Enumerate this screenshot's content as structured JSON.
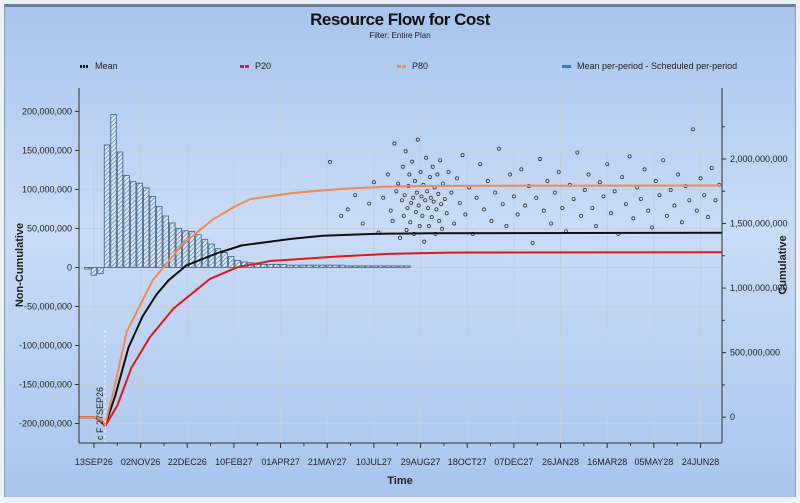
{
  "chart_data": {
    "type": "bar+line+scatter",
    "title": "Resource Flow for Cost",
    "subtitle": "Filter: Entire Plan",
    "xlabel": "Time",
    "ylabel_left": "Non-Cumulative",
    "ylabel_right": "Cumulative",
    "x_units": "days since 13SEP26",
    "xlim_days": [
      -16,
      673
    ],
    "x_tick_labels": [
      "13SEP26",
      "02NOV26",
      "22DEC26",
      "10FEB27",
      "01APR27",
      "21MAY27",
      "10JUL27",
      "29AUG27",
      "18OCT27",
      "07DEC27",
      "26JAN28",
      "16MAR28",
      "05MAY28",
      "24JUN28"
    ],
    "x_tick_step_days": 50,
    "ylim_left": [
      -225000000,
      230000000
    ],
    "y_left_ticks": [
      200000000,
      150000000,
      100000000,
      50000000,
      0,
      -50000000,
      -100000000,
      -150000000,
      -200000000
    ],
    "y_left_tick_labels": [
      "200,000,000",
      "150,000,000",
      "100,000,000",
      "50,000,000",
      "0",
      "-50,000,000",
      "-100,000,000",
      "-150,000,000",
      "-200,000,000"
    ],
    "ylim_right": [
      -200000000,
      2550000000
    ],
    "y_right_ticks": [
      2000000000,
      1500000000,
      1000000000,
      500000000,
      0
    ],
    "y_right_tick_labels": [
      "2,000,000,000",
      "1,500,000,000",
      "1,000,000,000",
      "500,000,000",
      "0"
    ],
    "grid": true,
    "legend_position": "top",
    "legend": [
      {
        "label": "Mean",
        "color": "#111111"
      },
      {
        "label": "P20",
        "color": "#e01818"
      },
      {
        "label": "P80",
        "color": "#f08a50"
      },
      {
        "label": "Mean per-period - Scheduled per-period",
        "color": "#1e7fe0"
      }
    ],
    "data_date_marker": {
      "day": 12,
      "label": "c F  27SEP26"
    },
    "bars": {
      "name": "Mean per-period - Scheduled per-period",
      "axis": "left",
      "start_day": -7,
      "step_days": 7,
      "values_millions": [
        -1,
        -10,
        -8,
        157,
        196,
        148,
        118,
        110,
        108,
        102,
        91,
        78,
        66,
        57,
        50,
        47,
        46,
        42,
        36,
        30,
        24,
        19,
        14,
        9,
        7,
        6,
        4,
        4,
        4,
        4,
        4,
        3,
        3,
        3,
        3,
        3,
        3,
        3,
        3,
        3,
        2,
        2,
        2,
        2,
        2,
        2,
        2,
        2,
        2,
        2
      ]
    },
    "series": [
      {
        "name": "Mean",
        "axis": "right",
        "color": "#111111",
        "points_days_millions": [
          [
            -16,
            0
          ],
          [
            0,
            0
          ],
          [
            7,
            -20
          ],
          [
            12,
            -65
          ],
          [
            23,
            170
          ],
          [
            37,
            540
          ],
          [
            52,
            780
          ],
          [
            67,
            950
          ],
          [
            80,
            1060
          ],
          [
            99,
            1175
          ],
          [
            132,
            1270
          ],
          [
            158,
            1330
          ],
          [
            210,
            1380
          ],
          [
            245,
            1405
          ],
          [
            300,
            1420
          ],
          [
            360,
            1425
          ],
          [
            673,
            1428
          ]
        ]
      },
      {
        "name": "P20",
        "axis": "right",
        "color": "#e01818",
        "points_days_millions": [
          [
            -16,
            0
          ],
          [
            0,
            0
          ],
          [
            7,
            -25
          ],
          [
            12,
            -70
          ],
          [
            25,
            90
          ],
          [
            40,
            380
          ],
          [
            60,
            620
          ],
          [
            85,
            840
          ],
          [
            124,
            1070
          ],
          [
            153,
            1160
          ],
          [
            189,
            1210
          ],
          [
            261,
            1245
          ],
          [
            315,
            1265
          ],
          [
            380,
            1275
          ],
          [
            673,
            1278
          ]
        ]
      },
      {
        "name": "P80",
        "axis": "right",
        "color": "#f08a50",
        "points_days_millions": [
          [
            -16,
            0
          ],
          [
            0,
            0
          ],
          [
            7,
            -15
          ],
          [
            12,
            -55
          ],
          [
            22,
            230
          ],
          [
            35,
            660
          ],
          [
            63,
            1060
          ],
          [
            95,
            1340
          ],
          [
            127,
            1530
          ],
          [
            153,
            1640
          ],
          [
            168,
            1690
          ],
          [
            217,
            1740
          ],
          [
            268,
            1770
          ],
          [
            310,
            1785
          ],
          [
            360,
            1792
          ],
          [
            673,
            1795
          ]
        ]
      }
    ],
    "scatter": {
      "name": "Sampled finish cost",
      "axis": "right",
      "points_days_millions": [
        [
          253,
          1978
        ],
        [
          265,
          1560
        ],
        [
          272,
          1610
        ],
        [
          280,
          1720
        ],
        [
          288,
          1500
        ],
        [
          295,
          1655
        ],
        [
          300,
          1820
        ],
        [
          305,
          1430
        ],
        [
          310,
          1700
        ],
        [
          315,
          1880
        ],
        [
          318,
          1600
        ],
        [
          320,
          1520
        ],
        [
          322,
          2120
        ],
        [
          324,
          1750
        ],
        [
          326,
          1810
        ],
        [
          328,
          1390
        ],
        [
          330,
          1680
        ],
        [
          331,
          1940
        ],
        [
          332,
          1560
        ],
        [
          333,
          1720
        ],
        [
          334,
          2060
        ],
        [
          335,
          1450
        ],
        [
          336,
          1620
        ],
        [
          337,
          1790
        ],
        [
          338,
          1880
        ],
        [
          339,
          1510
        ],
        [
          340,
          1660
        ],
        [
          341,
          1980
        ],
        [
          342,
          1700
        ],
        [
          343,
          1420
        ],
        [
          344,
          1830
        ],
        [
          345,
          1590
        ],
        [
          346,
          1740
        ],
        [
          347,
          2150
        ],
        [
          348,
          1640
        ],
        [
          349,
          1480
        ],
        [
          350,
          1900
        ],
        [
          351,
          1710
        ],
        [
          352,
          1560
        ],
        [
          353,
          1800
        ],
        [
          354,
          1360
        ],
        [
          355,
          1680
        ],
        [
          356,
          2010
        ],
        [
          357,
          1750
        ],
        [
          358,
          1620
        ],
        [
          359,
          1480
        ],
        [
          360,
          1860
        ],
        [
          361,
          1700
        ],
        [
          362,
          1550
        ],
        [
          363,
          1940
        ],
        [
          364,
          1670
        ],
        [
          365,
          1780
        ],
        [
          366,
          1420
        ],
        [
          367,
          1610
        ],
        [
          368,
          1880
        ],
        [
          369,
          1730
        ],
        [
          370,
          1520
        ],
        [
          371,
          1990
        ],
        [
          372,
          1650
        ],
        [
          373,
          1460
        ],
        [
          374,
          1810
        ],
        [
          376,
          1690
        ],
        [
          378,
          1580
        ],
        [
          380,
          1900
        ],
        [
          383,
          1740
        ],
        [
          386,
          1500
        ],
        [
          389,
          1850
        ],
        [
          392,
          1660
        ],
        [
          395,
          2030
        ],
        [
          398,
          1570
        ],
        [
          402,
          1780
        ],
        [
          406,
          1420
        ],
        [
          410,
          1700
        ],
        [
          414,
          1960
        ],
        [
          418,
          1610
        ],
        [
          422,
          1830
        ],
        [
          426,
          1520
        ],
        [
          430,
          1740
        ],
        [
          434,
          2080
        ],
        [
          438,
          1650
        ],
        [
          442,
          1480
        ],
        [
          446,
          1880
        ],
        [
          450,
          1710
        ],
        [
          454,
          1570
        ],
        [
          458,
          1920
        ],
        [
          462,
          1640
        ],
        [
          466,
          1790
        ],
        [
          470,
          1350
        ],
        [
          474,
          1700
        ],
        [
          478,
          2000
        ],
        [
          482,
          1600
        ],
        [
          486,
          1830
        ],
        [
          490,
          1500
        ],
        [
          494,
          1740
        ],
        [
          498,
          1900
        ],
        [
          502,
          1620
        ],
        [
          506,
          1440
        ],
        [
          510,
          1800
        ],
        [
          514,
          1690
        ],
        [
          518,
          2050
        ],
        [
          522,
          1560
        ],
        [
          526,
          1760
        ],
        [
          530,
          1880
        ],
        [
          534,
          1620
        ],
        [
          538,
          1480
        ],
        [
          542,
          1820
        ],
        [
          546,
          1710
        ],
        [
          550,
          1960
        ],
        [
          554,
          1580
        ],
        [
          558,
          1750
        ],
        [
          562,
          1420
        ],
        [
          566,
          1860
        ],
        [
          570,
          1650
        ],
        [
          574,
          2020
        ],
        [
          578,
          1540
        ],
        [
          582,
          1780
        ],
        [
          586,
          1690
        ],
        [
          590,
          1920
        ],
        [
          594,
          1600
        ],
        [
          598,
          1470
        ],
        [
          602,
          1830
        ],
        [
          606,
          1720
        ],
        [
          610,
          1990
        ],
        [
          614,
          1560
        ],
        [
          618,
          1760
        ],
        [
          622,
          1640
        ],
        [
          626,
          1880
        ],
        [
          630,
          1510
        ],
        [
          634,
          1790
        ],
        [
          638,
          1680
        ],
        [
          642,
          2230
        ],
        [
          646,
          1600
        ],
        [
          650,
          1850
        ],
        [
          654,
          1720
        ],
        [
          658,
          1550
        ],
        [
          662,
          1930
        ],
        [
          666,
          1680
        ],
        [
          670,
          1800
        ]
      ]
    }
  }
}
